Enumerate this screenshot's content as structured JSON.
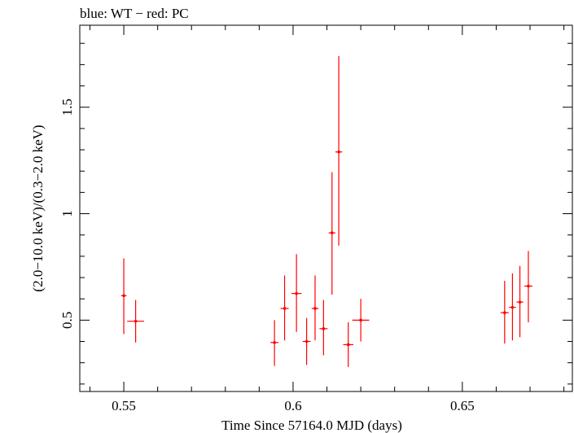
{
  "header_text": "blue: WT − red: PC",
  "chart_data": {
    "type": "scatter",
    "xlabel": "Time Since 57164.0 MJD (days)",
    "ylabel": "(2.0−10.0 keV)/(0.3−2.0 keV)",
    "xlim": [
      0.537,
      0.6825
    ],
    "ylim": [
      0.165,
      1.885
    ],
    "x_ticks": [
      0.55,
      0.6,
      0.65
    ],
    "x_tick_labels": [
      "0.55",
      "0.6",
      "0.65"
    ],
    "y_ticks": [
      0.5,
      1,
      1.5
    ],
    "y_tick_labels": [
      "0.5",
      "1",
      "1.5"
    ],
    "grid": false,
    "series": [
      {
        "color": "#ff0000",
        "points": [
          {
            "x": 0.55,
            "xerr": 0.0008,
            "y": 0.615,
            "ylo": 0.435,
            "yhi": 0.79
          },
          {
            "x": 0.5535,
            "xerr": 0.0025,
            "y": 0.495,
            "ylo": 0.395,
            "yhi": 0.595
          },
          {
            "x": 0.5945,
            "xerr": 0.0012,
            "y": 0.395,
            "ylo": 0.285,
            "yhi": 0.5
          },
          {
            "x": 0.5975,
            "xerr": 0.0012,
            "y": 0.555,
            "ylo": 0.405,
            "yhi": 0.71
          },
          {
            "x": 0.601,
            "xerr": 0.0015,
            "y": 0.625,
            "ylo": 0.445,
            "yhi": 0.81
          },
          {
            "x": 0.604,
            "xerr": 0.0012,
            "y": 0.4,
            "ylo": 0.29,
            "yhi": 0.51
          },
          {
            "x": 0.6065,
            "xerr": 0.001,
            "y": 0.555,
            "ylo": 0.405,
            "yhi": 0.71
          },
          {
            "x": 0.609,
            "xerr": 0.0012,
            "y": 0.46,
            "ylo": 0.335,
            "yhi": 0.595
          },
          {
            "x": 0.6115,
            "xerr": 0.001,
            "y": 0.91,
            "ylo": 0.62,
            "yhi": 1.195
          },
          {
            "x": 0.6135,
            "xerr": 0.001,
            "y": 1.29,
            "ylo": 0.85,
            "yhi": 1.74
          },
          {
            "x": 0.6163,
            "xerr": 0.0015,
            "y": 0.385,
            "ylo": 0.28,
            "yhi": 0.49
          },
          {
            "x": 0.62,
            "xerr": 0.0025,
            "y": 0.5,
            "ylo": 0.4,
            "yhi": 0.6
          },
          {
            "x": 0.6625,
            "xerr": 0.0012,
            "y": 0.535,
            "ylo": 0.39,
            "yhi": 0.685
          },
          {
            "x": 0.6648,
            "xerr": 0.001,
            "y": 0.56,
            "ylo": 0.405,
            "yhi": 0.72
          },
          {
            "x": 0.667,
            "xerr": 0.001,
            "y": 0.585,
            "ylo": 0.42,
            "yhi": 0.755
          },
          {
            "x": 0.6695,
            "xerr": 0.0012,
            "y": 0.66,
            "ylo": 0.49,
            "yhi": 0.825
          }
        ]
      }
    ]
  }
}
